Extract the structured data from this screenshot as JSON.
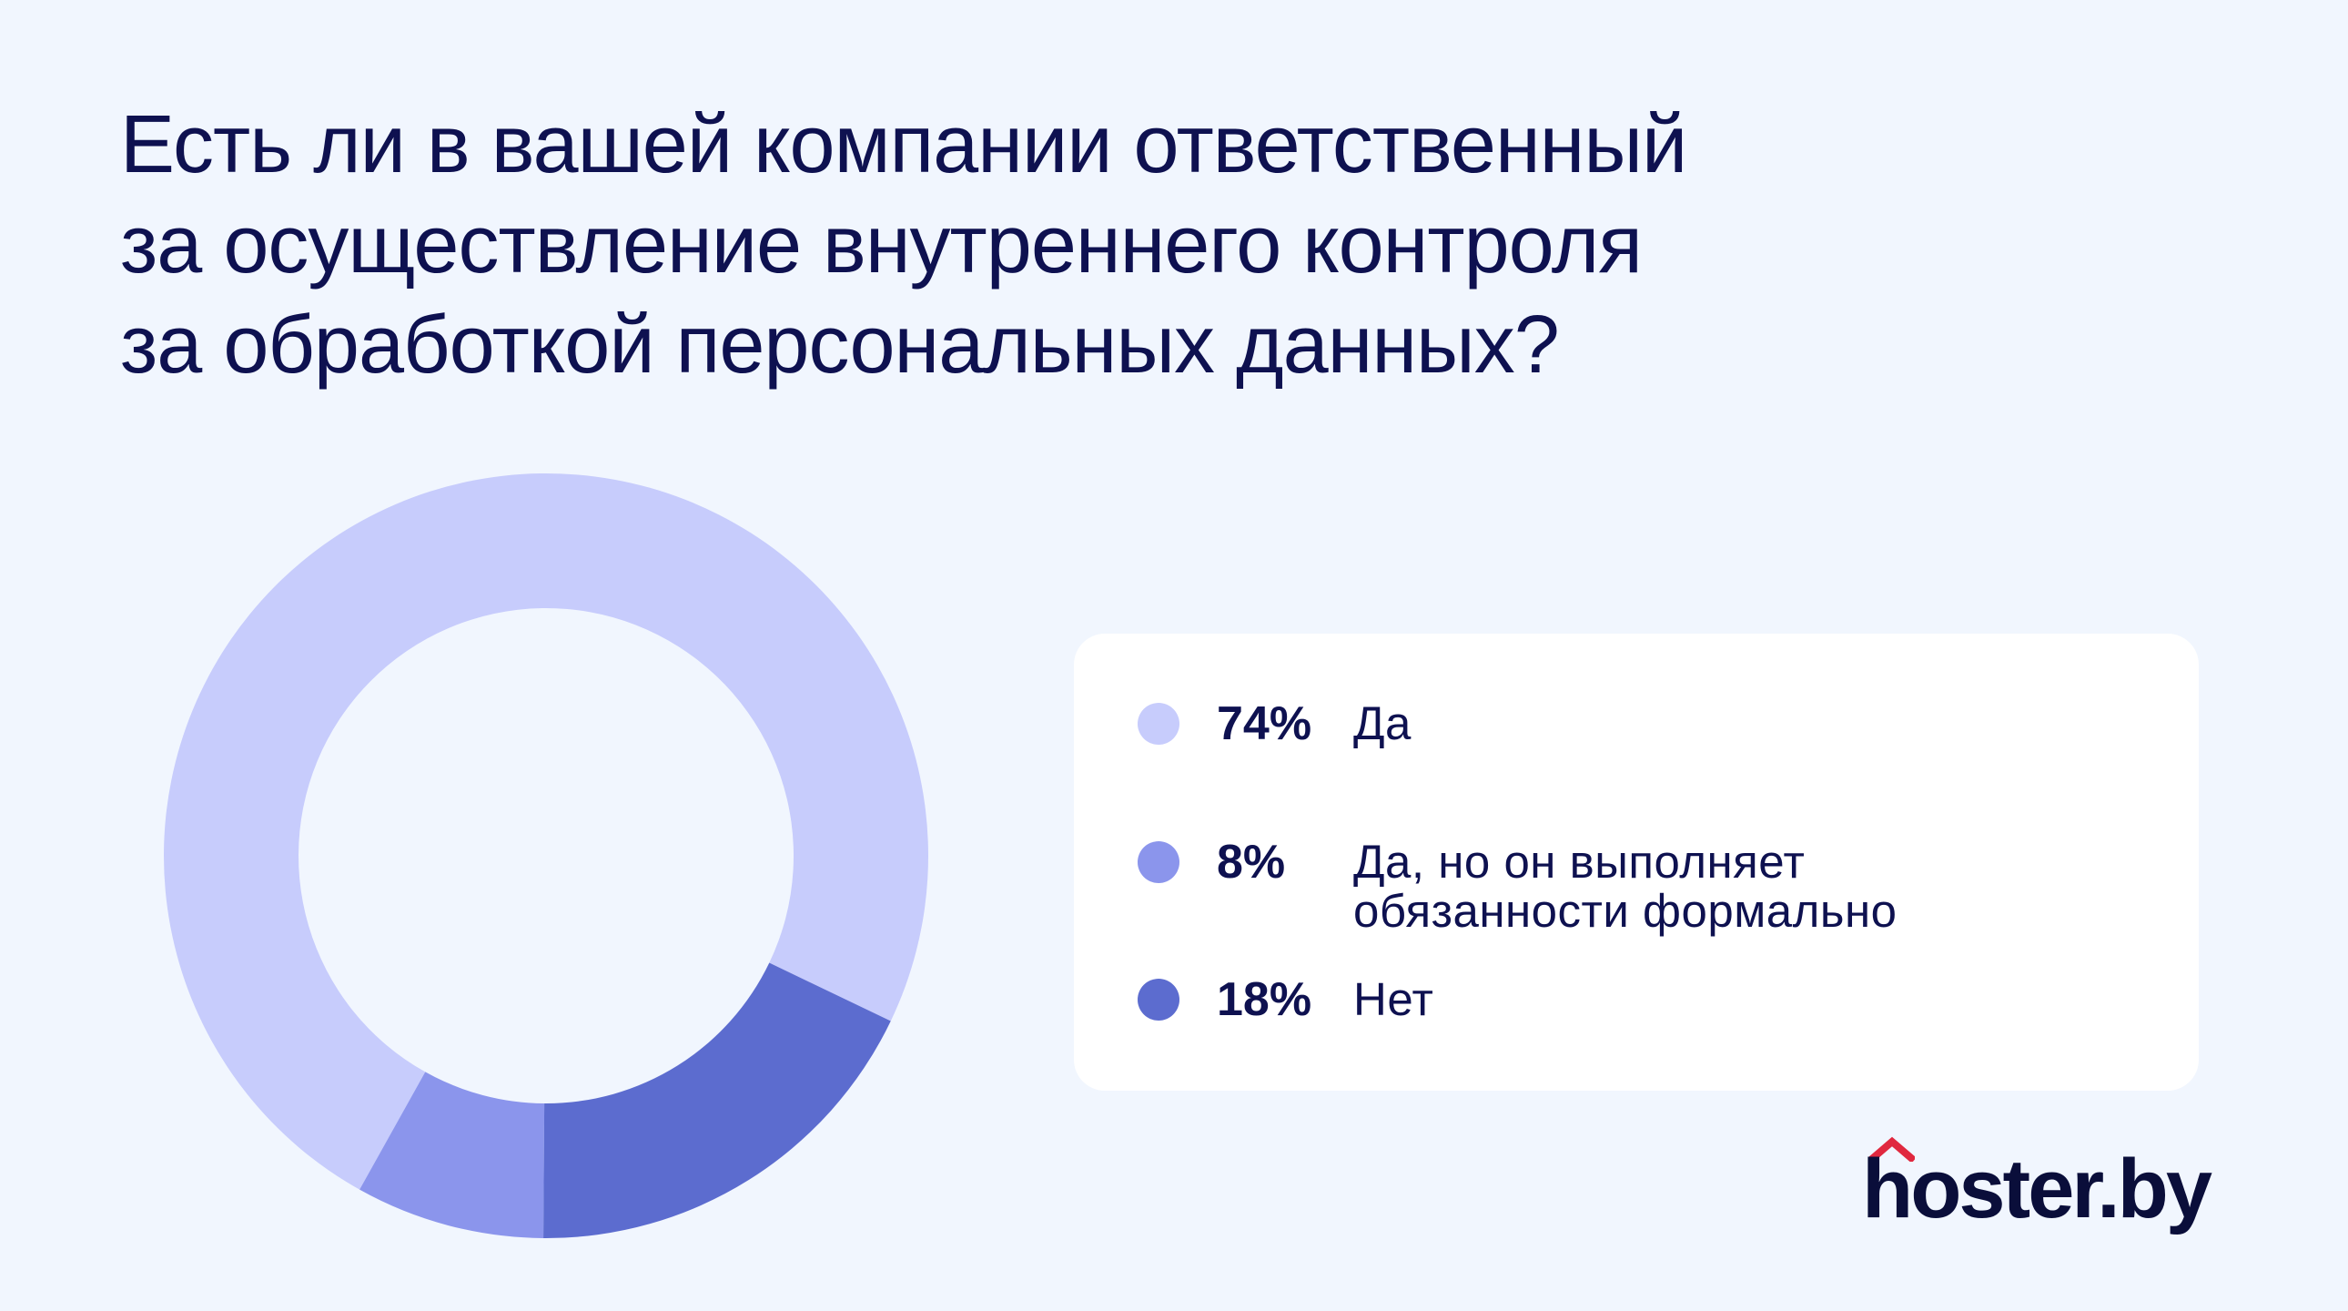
{
  "title_lines": [
    "Есть ли в вашей компании ответственный",
    "за осуществление внутреннего контроля",
    "за обработкой персональных данных?"
  ],
  "legend": [
    {
      "value": "74%",
      "label": "Да",
      "color": "#c7ccfc"
    },
    {
      "value": "8%",
      "label": "Да, но он выполняет обязанности формально",
      "color": "#8b95ec"
    },
    {
      "value": "18%",
      "label": "Нет",
      "color": "#5c6ccf"
    }
  ],
  "brand": {
    "name": "hoster.by",
    "accent": "#e0283f"
  },
  "chart_data": {
    "type": "pie",
    "style": "donut",
    "title": "Есть ли в вашей компании ответственный за осуществление внутреннего контроля за обработкой персональных данных?",
    "categories": [
      "Да",
      "Да, но он выполняет обязанности формально",
      "Нет"
    ],
    "values": [
      74,
      8,
      18
    ],
    "colors": [
      "#c7ccfc",
      "#8b95ec",
      "#5c6ccf"
    ],
    "legend": "right"
  }
}
